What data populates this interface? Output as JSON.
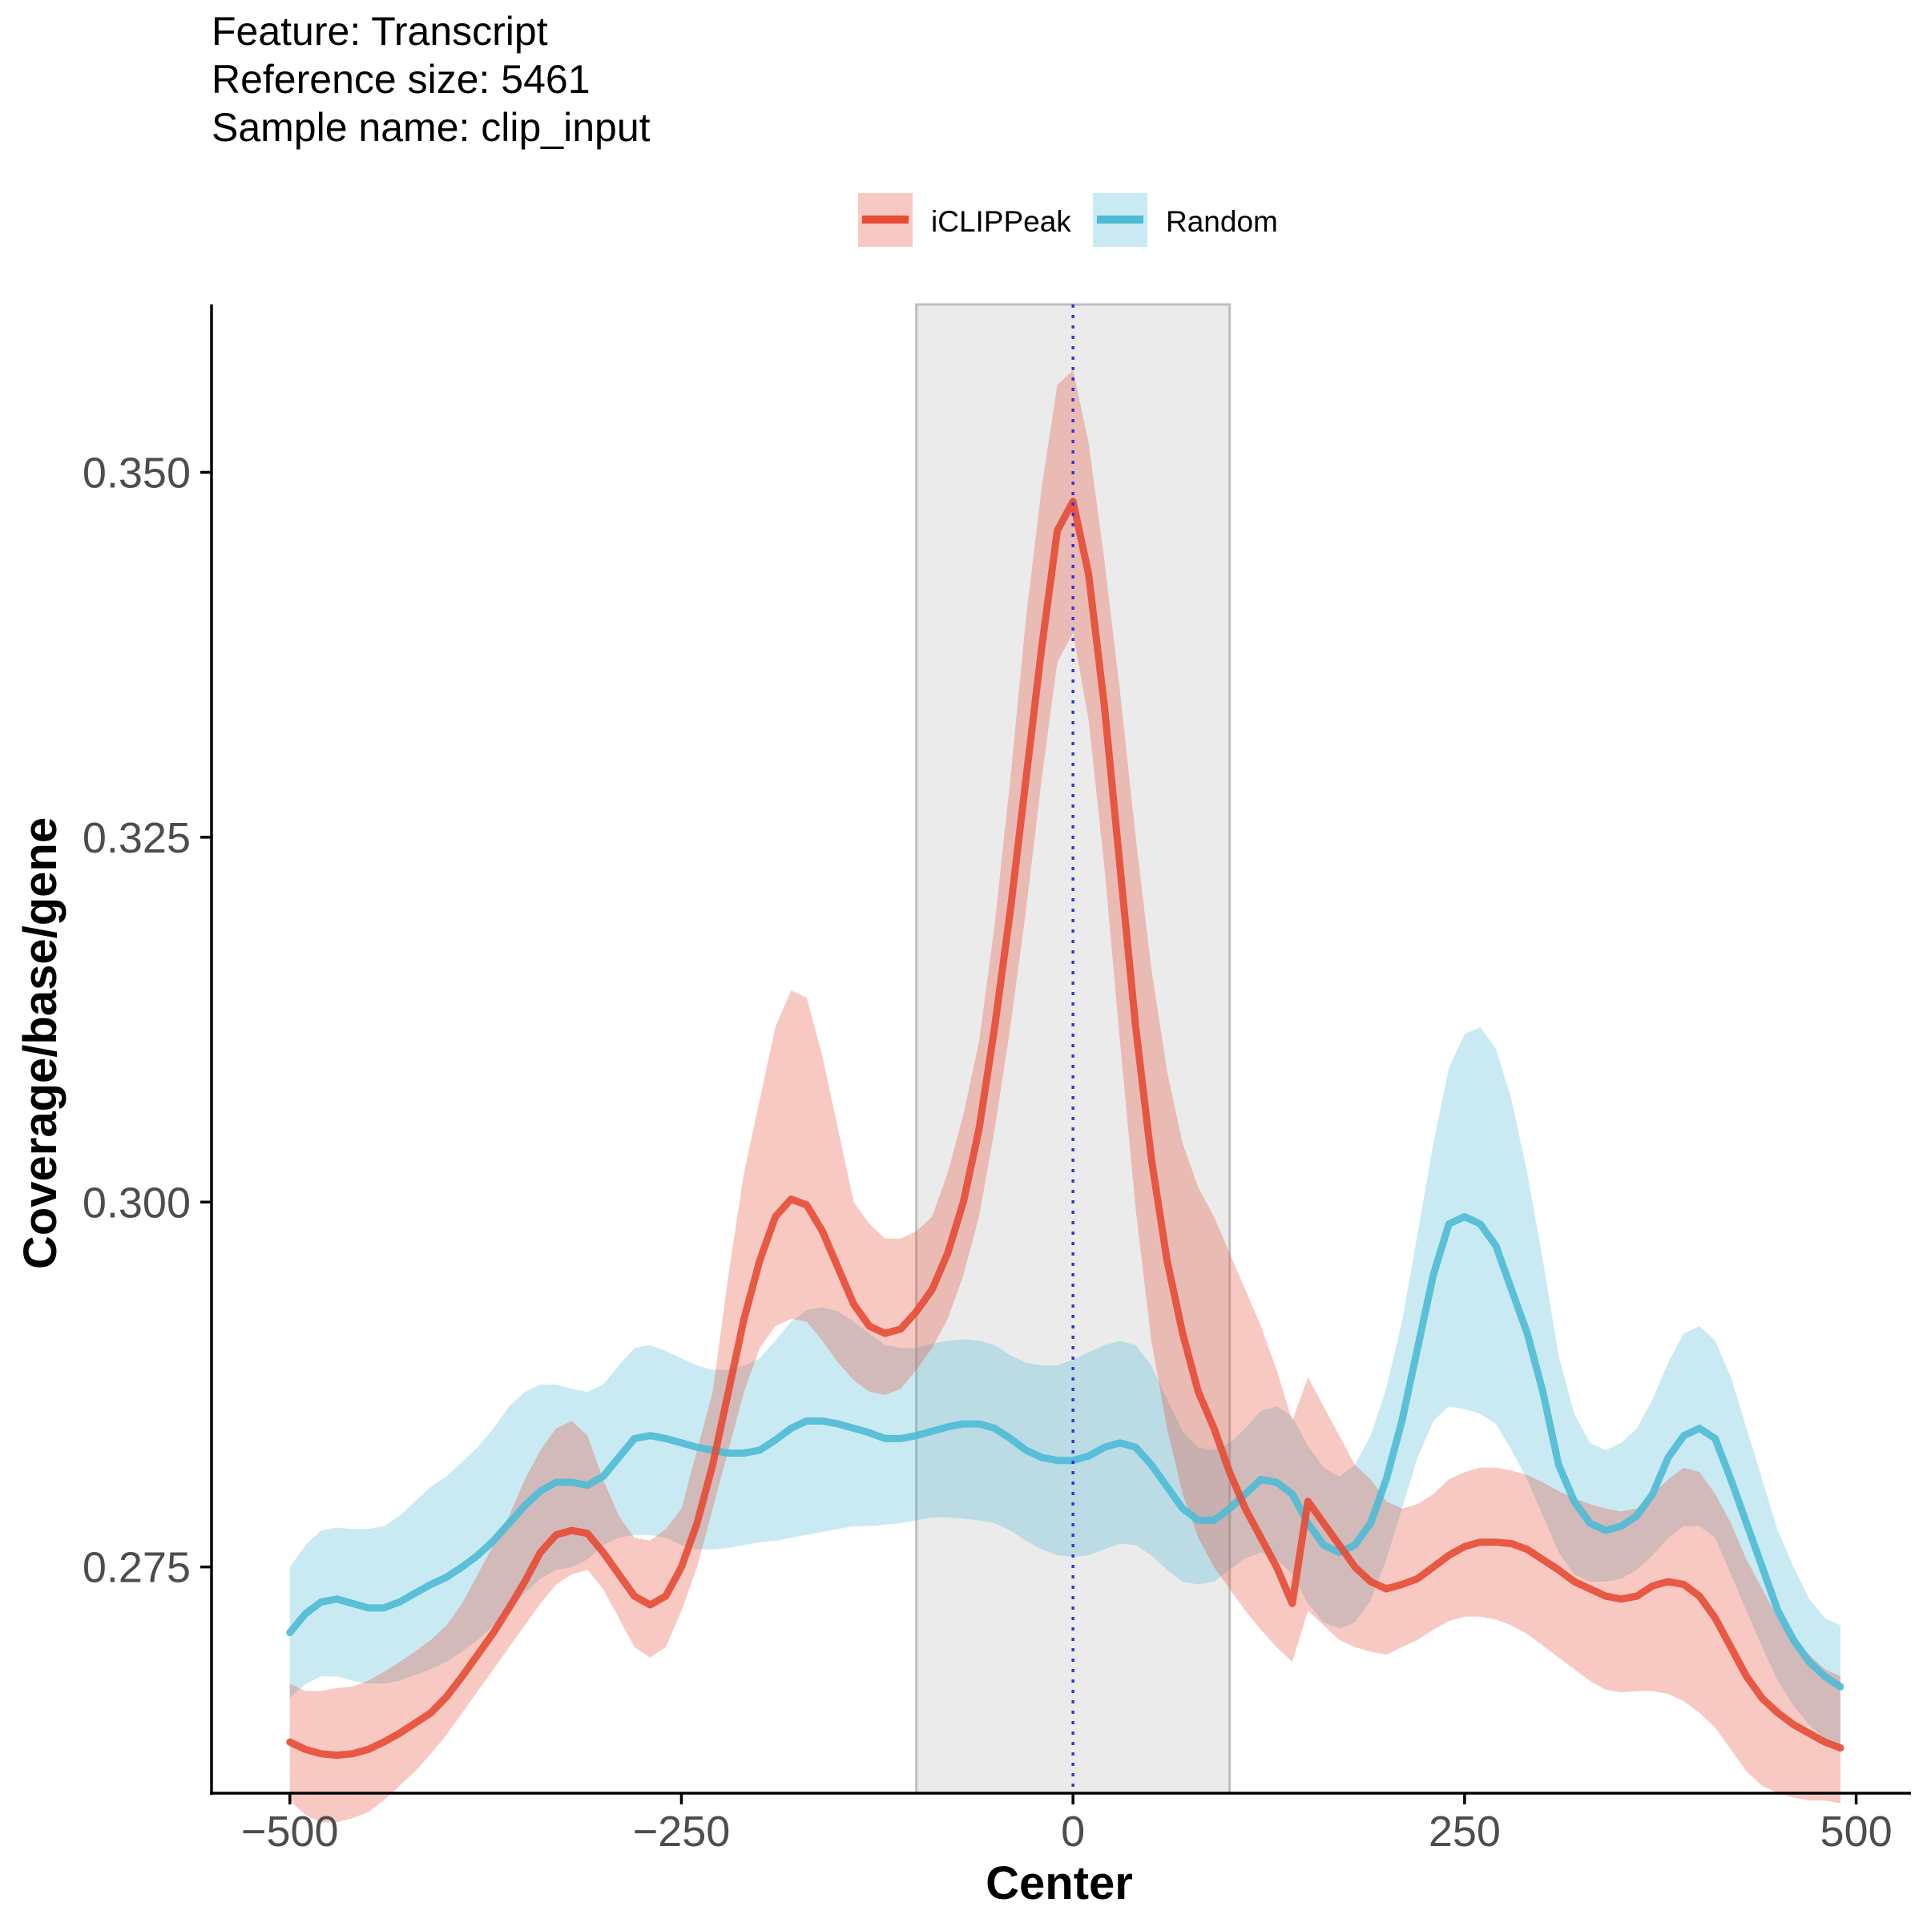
{
  "title_lines": [
    "Feature: Transcript",
    "Reference size: 5461",
    "Sample name: clip_input"
  ],
  "chart_data": {
    "type": "line",
    "xlabel": "Center",
    "ylabel": "Coverage/base/gene",
    "xlim": [
      -550,
      535
    ],
    "ylim": [
      0.2595,
      0.3615
    ],
    "x_ticks": [
      -500,
      -250,
      0,
      250,
      500
    ],
    "x_tick_labels": [
      "−500",
      "−250",
      "0",
      "250",
      "500"
    ],
    "y_ticks": [
      0.275,
      0.3,
      0.325,
      0.35
    ],
    "y_tick_labels": [
      "0.275",
      "0.300",
      "0.325",
      "0.350"
    ],
    "grid": false,
    "legend_position": "top",
    "highlight_region": [
      -100,
      100
    ],
    "center_line_x": 0,
    "x": [
      -500,
      -490,
      -480,
      -470,
      -460,
      -450,
      -440,
      -430,
      -420,
      -410,
      -400,
      -390,
      -380,
      -370,
      -360,
      -350,
      -340,
      -330,
      -320,
      -310,
      -300,
      -290,
      -280,
      -270,
      -260,
      -250,
      -240,
      -230,
      -220,
      -210,
      -200,
      -190,
      -180,
      -170,
      -160,
      -150,
      -140,
      -130,
      -120,
      -110,
      -100,
      -90,
      -80,
      -70,
      -60,
      -50,
      -40,
      -30,
      -20,
      -10,
      0,
      10,
      20,
      30,
      40,
      50,
      60,
      70,
      80,
      90,
      100,
      110,
      120,
      130,
      140,
      150,
      160,
      170,
      180,
      190,
      200,
      210,
      220,
      230,
      240,
      250,
      260,
      270,
      280,
      290,
      300,
      310,
      320,
      330,
      340,
      350,
      360,
      370,
      380,
      390,
      400,
      410,
      420,
      430,
      440,
      450,
      460,
      470,
      480,
      490
    ],
    "series": [
      {
        "name": "iCLIPPeak",
        "color": "#E64B35",
        "values": [
          0.263,
          0.2625,
          0.2622,
          0.2621,
          0.2622,
          0.2625,
          0.263,
          0.2636,
          0.2643,
          0.265,
          0.2661,
          0.2675,
          0.269,
          0.2705,
          0.2722,
          0.274,
          0.276,
          0.2772,
          0.2775,
          0.2773,
          0.276,
          0.2745,
          0.273,
          0.2724,
          0.273,
          0.275,
          0.278,
          0.282,
          0.287,
          0.292,
          0.296,
          0.299,
          0.3002,
          0.2998,
          0.298,
          0.2955,
          0.293,
          0.2915,
          0.291,
          0.2913,
          0.2925,
          0.294,
          0.2965,
          0.3,
          0.305,
          0.312,
          0.32,
          0.329,
          0.338,
          0.346,
          0.348,
          0.343,
          0.334,
          0.323,
          0.312,
          0.303,
          0.296,
          0.291,
          0.287,
          0.2845,
          0.2815,
          0.279,
          0.277,
          0.275,
          0.2725,
          0.2795,
          0.278,
          0.2765,
          0.275,
          0.274,
          0.2735,
          0.2738,
          0.2742,
          0.275,
          0.2758,
          0.2764,
          0.2767,
          0.2767,
          0.2766,
          0.2762,
          0.2755,
          0.2748,
          0.274,
          0.2735,
          0.273,
          0.2728,
          0.273,
          0.2737,
          0.274,
          0.2738,
          0.273,
          0.2715,
          0.2695,
          0.2675,
          0.266,
          0.265,
          0.2642,
          0.2636,
          0.263,
          0.2626
        ],
        "lower": [
          0.259,
          0.258,
          0.2575,
          0.2575,
          0.2578,
          0.2582,
          0.259,
          0.26,
          0.261,
          0.2622,
          0.2635,
          0.265,
          0.2665,
          0.268,
          0.2695,
          0.271,
          0.2725,
          0.2738,
          0.2745,
          0.2748,
          0.2735,
          0.2715,
          0.2695,
          0.2688,
          0.2695,
          0.272,
          0.275,
          0.279,
          0.283,
          0.287,
          0.29,
          0.2915,
          0.292,
          0.2918,
          0.2905,
          0.289,
          0.2878,
          0.287,
          0.2868,
          0.2872,
          0.2885,
          0.29,
          0.292,
          0.295,
          0.299,
          0.305,
          0.312,
          0.32,
          0.329,
          0.337,
          0.339,
          0.333,
          0.323,
          0.311,
          0.2995,
          0.2905,
          0.2845,
          0.28,
          0.277,
          0.275,
          0.2735,
          0.272,
          0.2707,
          0.2695,
          0.2685,
          0.272,
          0.271,
          0.27,
          0.2695,
          0.2692,
          0.269,
          0.2695,
          0.27,
          0.2707,
          0.2713,
          0.2716,
          0.2716,
          0.2714,
          0.271,
          0.2704,
          0.2696,
          0.2688,
          0.268,
          0.2672,
          0.2666,
          0.2664,
          0.2665,
          0.2665,
          0.2663,
          0.2658,
          0.265,
          0.264,
          0.2625,
          0.261,
          0.26,
          0.2595,
          0.2592,
          0.259,
          0.259,
          0.2588
        ],
        "upper": [
          0.267,
          0.2665,
          0.2665,
          0.2667,
          0.2668,
          0.2672,
          0.2678,
          0.2685,
          0.2692,
          0.27,
          0.271,
          0.2725,
          0.2745,
          0.2765,
          0.2785,
          0.281,
          0.283,
          0.2845,
          0.285,
          0.284,
          0.281,
          0.2785,
          0.277,
          0.2768,
          0.2776,
          0.279,
          0.283,
          0.287,
          0.295,
          0.302,
          0.307,
          0.312,
          0.3145,
          0.314,
          0.31,
          0.305,
          0.3,
          0.2985,
          0.2975,
          0.2975,
          0.298,
          0.299,
          0.302,
          0.306,
          0.311,
          0.319,
          0.329,
          0.34,
          0.349,
          0.356,
          0.357,
          0.352,
          0.344,
          0.335,
          0.325,
          0.316,
          0.309,
          0.304,
          0.301,
          0.299,
          0.2965,
          0.294,
          0.2915,
          0.2885,
          0.285,
          0.288,
          0.286,
          0.284,
          0.282,
          0.281,
          0.2795,
          0.279,
          0.2793,
          0.28,
          0.281,
          0.2815,
          0.2818,
          0.2818,
          0.2816,
          0.2813,
          0.2808,
          0.2802,
          0.2797,
          0.2793,
          0.279,
          0.2788,
          0.279,
          0.28,
          0.281,
          0.2818,
          0.2815,
          0.28,
          0.278,
          0.2755,
          0.2735,
          0.2715,
          0.27,
          0.269,
          0.268,
          0.2675
        ]
      },
      {
        "name": "Random",
        "color": "#4DBBD5",
        "values": [
          0.2705,
          0.2718,
          0.2726,
          0.2728,
          0.2725,
          0.2722,
          0.2722,
          0.2726,
          0.2732,
          0.2738,
          0.2743,
          0.275,
          0.2758,
          0.2768,
          0.278,
          0.2792,
          0.2802,
          0.2808,
          0.2808,
          0.2806,
          0.2812,
          0.2825,
          0.2838,
          0.284,
          0.2838,
          0.2835,
          0.2832,
          0.283,
          0.2828,
          0.2828,
          0.283,
          0.2837,
          0.2845,
          0.285,
          0.285,
          0.2848,
          0.2845,
          0.2842,
          0.2838,
          0.2838,
          0.284,
          0.2843,
          0.2846,
          0.2848,
          0.2848,
          0.2845,
          0.2838,
          0.283,
          0.2825,
          0.2823,
          0.2823,
          0.2826,
          0.2832,
          0.2835,
          0.2832,
          0.282,
          0.2805,
          0.279,
          0.2782,
          0.2782,
          0.279,
          0.28,
          0.281,
          0.2808,
          0.28,
          0.278,
          0.2765,
          0.276,
          0.2765,
          0.278,
          0.281,
          0.285,
          0.29,
          0.295,
          0.2985,
          0.299,
          0.2985,
          0.297,
          0.294,
          0.291,
          0.287,
          0.282,
          0.2795,
          0.278,
          0.2775,
          0.2778,
          0.2785,
          0.28,
          0.2825,
          0.284,
          0.2845,
          0.2838,
          0.281,
          0.278,
          0.275,
          0.272,
          0.27,
          0.2685,
          0.2675,
          0.2668
        ],
        "lower": [
          0.266,
          0.267,
          0.2675,
          0.2675,
          0.2672,
          0.267,
          0.267,
          0.2672,
          0.2676,
          0.268,
          0.2685,
          0.2692,
          0.27,
          0.271,
          0.272,
          0.2732,
          0.2742,
          0.2748,
          0.275,
          0.2755,
          0.2765,
          0.277,
          0.2772,
          0.2772,
          0.277,
          0.2765,
          0.2762,
          0.2762,
          0.2763,
          0.2765,
          0.2767,
          0.2768,
          0.277,
          0.2772,
          0.2774,
          0.2776,
          0.2778,
          0.2778,
          0.2779,
          0.278,
          0.2782,
          0.2784,
          0.2784,
          0.2783,
          0.2782,
          0.278,
          0.2775,
          0.2768,
          0.2762,
          0.2758,
          0.2757,
          0.2758,
          0.2762,
          0.2766,
          0.2765,
          0.2758,
          0.2748,
          0.274,
          0.2738,
          0.274,
          0.2748,
          0.2756,
          0.276,
          0.2755,
          0.2745,
          0.2725,
          0.2712,
          0.2708,
          0.2712,
          0.2727,
          0.2755,
          0.279,
          0.2825,
          0.285,
          0.286,
          0.2858,
          0.2855,
          0.2848,
          0.283,
          0.281,
          0.2785,
          0.276,
          0.2745,
          0.274,
          0.274,
          0.2742,
          0.2748,
          0.2758,
          0.277,
          0.2778,
          0.2778,
          0.277,
          0.2745,
          0.272,
          0.2695,
          0.2672,
          0.2655,
          0.2642,
          0.2632,
          0.2625
        ],
        "upper": [
          0.275,
          0.2765,
          0.2775,
          0.2777,
          0.2776,
          0.2776,
          0.2778,
          0.2785,
          0.2795,
          0.2805,
          0.2812,
          0.2822,
          0.2832,
          0.2845,
          0.286,
          0.287,
          0.2875,
          0.2875,
          0.2872,
          0.287,
          0.2875,
          0.2888,
          0.29,
          0.2902,
          0.2898,
          0.2893,
          0.2888,
          0.2885,
          0.2885,
          0.2888,
          0.2893,
          0.2905,
          0.2918,
          0.2926,
          0.2928,
          0.2925,
          0.2918,
          0.291,
          0.2902,
          0.29,
          0.29,
          0.2903,
          0.2905,
          0.2906,
          0.2905,
          0.2902,
          0.2895,
          0.289,
          0.2888,
          0.2888,
          0.2892,
          0.2897,
          0.2902,
          0.2905,
          0.2902,
          0.2888,
          0.2865,
          0.2843,
          0.2832,
          0.283,
          0.2835,
          0.2845,
          0.2857,
          0.286,
          0.2853,
          0.2833,
          0.2818,
          0.2812,
          0.282,
          0.284,
          0.2872,
          0.2918,
          0.2978,
          0.304,
          0.3092,
          0.3115,
          0.312,
          0.3105,
          0.307,
          0.302,
          0.296,
          0.2895,
          0.2855,
          0.2835,
          0.283,
          0.2835,
          0.2845,
          0.2865,
          0.289,
          0.291,
          0.2915,
          0.2905,
          0.288,
          0.2845,
          0.281,
          0.2775,
          0.275,
          0.2728,
          0.2715,
          0.271
        ]
      }
    ]
  }
}
